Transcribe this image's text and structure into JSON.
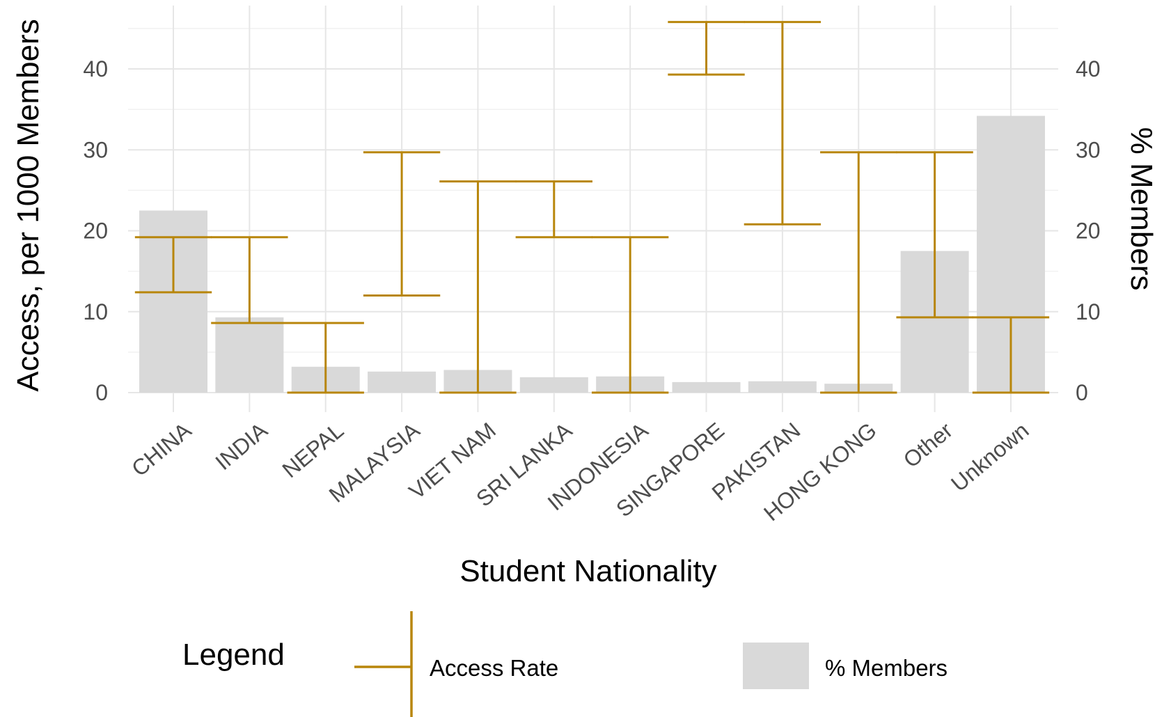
{
  "chart_data": {
    "type": "bar",
    "categories": [
      "CHINA",
      "INDIA",
      "NEPAL",
      "MALAYSIA",
      "VIET NAM",
      "SRI LANKA",
      "INDONESIA",
      "SINGAPORE",
      "PAKISTAN",
      "HONG KONG",
      "Other",
      "Unknown"
    ],
    "series": [
      {
        "name": "% Members",
        "axis": "right",
        "mark": "bar",
        "values": [
          22.5,
          9.3,
          3.2,
          2.6,
          2.8,
          1.9,
          2.0,
          1.3,
          1.4,
          1.1,
          17.5,
          34.2
        ]
      },
      {
        "name": "Access Rate",
        "axis": "left",
        "mark": "error-bar",
        "lower": [
          12.4,
          8.6,
          0,
          12.0,
          0,
          19.2,
          0,
          39.3,
          20.8,
          0,
          9.3,
          0
        ],
        "upper": [
          19.2,
          19.2,
          8.6,
          29.7,
          26.1,
          26.1,
          19.2,
          45.8,
          45.8,
          29.7,
          29.7,
          9.3
        ]
      }
    ],
    "ylim_left": [
      0,
      46
    ],
    "ylim_right": [
      0,
      46
    ],
    "left_ticks": [
      0,
      10,
      20,
      30,
      40
    ],
    "right_ticks": [
      0,
      10,
      20,
      30,
      40
    ],
    "xlabel": "Student Nationality",
    "ylabel": "Access, per 1000 Members",
    "ylabel_right": "% Members",
    "grid": true,
    "legend": {
      "title": "Legend",
      "position": "bottom",
      "items": [
        {
          "label": "Access Rate",
          "key": "error-bar"
        },
        {
          "label": "% Members",
          "key": "bar"
        }
      ]
    },
    "colors": {
      "access_rate": "#b8860b",
      "members_bar": "#d9d9d9",
      "grid_major": "#e6e6e6",
      "grid_minor": "#f1f1f1",
      "tick_text": "#4d4d4d"
    }
  }
}
